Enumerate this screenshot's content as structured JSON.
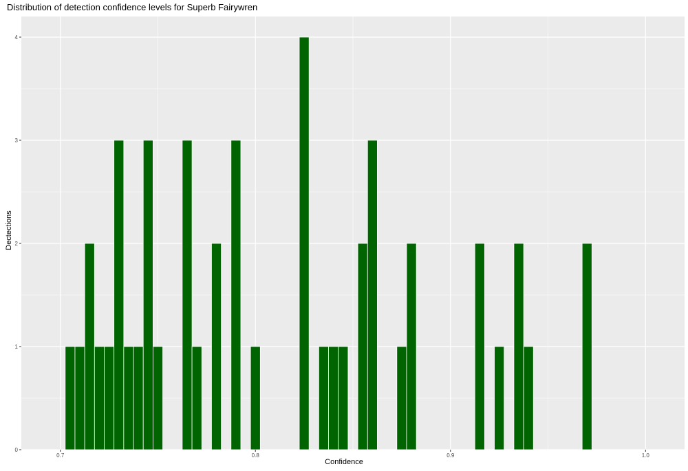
{
  "chart_data": {
    "type": "bar",
    "title": "Distribution of detection confidence levels for Superb Fairywren",
    "xlabel": "Confidence",
    "ylabel": "Dectections",
    "xlim": [
      0.68,
      1.02
    ],
    "ylim": [
      0,
      4.2
    ],
    "x_ticks": [
      0.7,
      0.8,
      0.9,
      1.0
    ],
    "x_tick_labels": [
      "0.7",
      "0.8",
      "0.9",
      "1.0"
    ],
    "y_ticks": [
      0,
      1,
      2,
      3,
      4
    ],
    "y_tick_labels": [
      "0",
      "1",
      "2",
      "3",
      "4"
    ],
    "bin_width": 0.005,
    "bar_color": "#006400",
    "bar_outline": "#ffffff",
    "panel_background": "#ebebeb",
    "grid": true,
    "bars": [
      {
        "x": 0.705,
        "y": 1
      },
      {
        "x": 0.71,
        "y": 1
      },
      {
        "x": 0.715,
        "y": 2
      },
      {
        "x": 0.72,
        "y": 1
      },
      {
        "x": 0.725,
        "y": 1
      },
      {
        "x": 0.73,
        "y": 3
      },
      {
        "x": 0.735,
        "y": 1
      },
      {
        "x": 0.74,
        "y": 1
      },
      {
        "x": 0.745,
        "y": 3
      },
      {
        "x": 0.75,
        "y": 1
      },
      {
        "x": 0.765,
        "y": 3
      },
      {
        "x": 0.77,
        "y": 1
      },
      {
        "x": 0.78,
        "y": 2
      },
      {
        "x": 0.79,
        "y": 3
      },
      {
        "x": 0.8,
        "y": 1
      },
      {
        "x": 0.825,
        "y": 4
      },
      {
        "x": 0.835,
        "y": 1
      },
      {
        "x": 0.84,
        "y": 1
      },
      {
        "x": 0.845,
        "y": 1
      },
      {
        "x": 0.855,
        "y": 2
      },
      {
        "x": 0.86,
        "y": 3
      },
      {
        "x": 0.875,
        "y": 1
      },
      {
        "x": 0.88,
        "y": 2
      },
      {
        "x": 0.915,
        "y": 2
      },
      {
        "x": 0.925,
        "y": 1
      },
      {
        "x": 0.935,
        "y": 2
      },
      {
        "x": 0.94,
        "y": 1
      },
      {
        "x": 0.97,
        "y": 2
      }
    ]
  }
}
